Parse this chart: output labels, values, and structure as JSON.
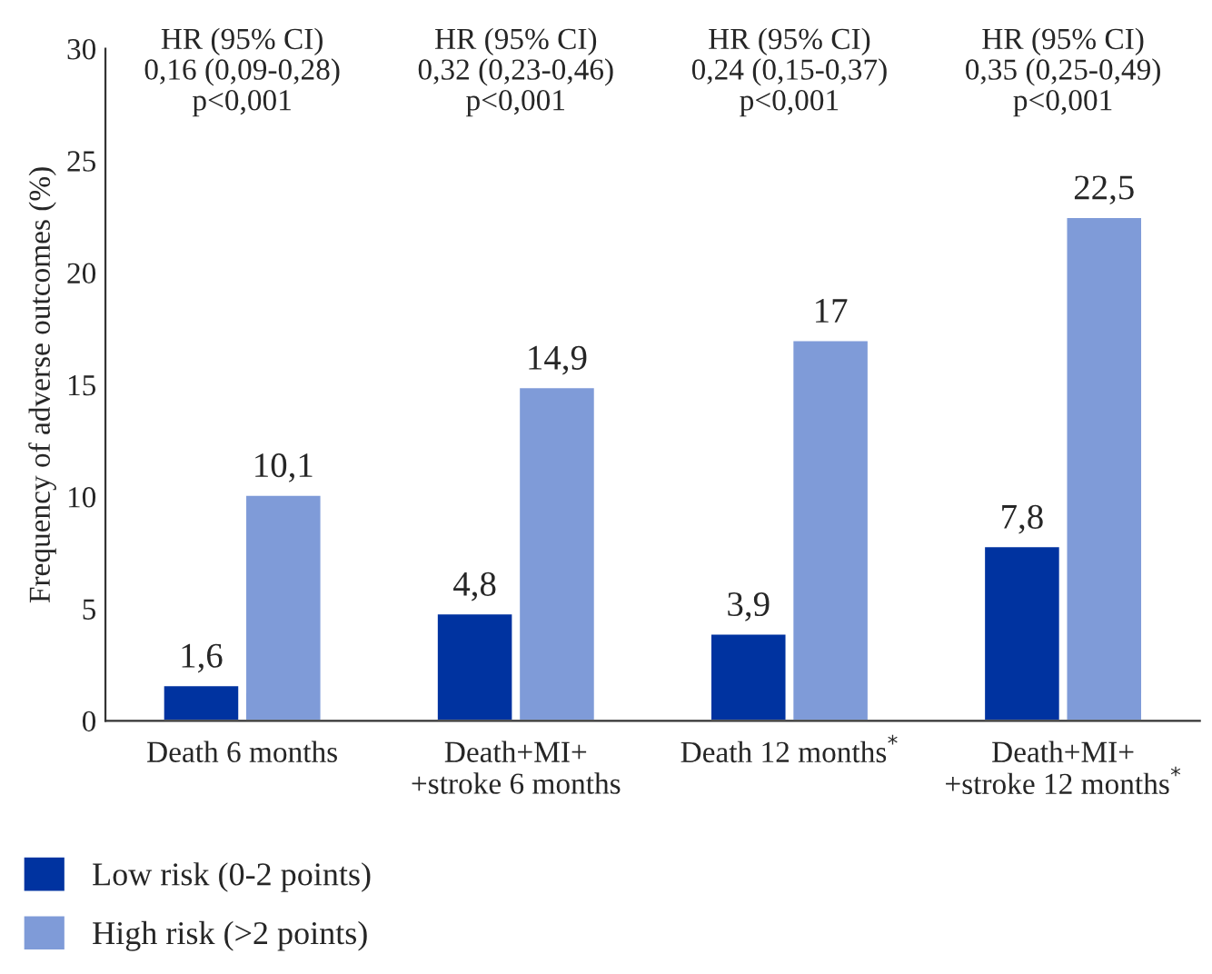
{
  "chart_data": {
    "type": "bar",
    "ylabel": "Frequency of adverse outcomes (%)",
    "categories": [
      "Death 6 months",
      "Death+MI+\n+stroke 6 months",
      "Death 12 months$^{*}$",
      "Death+MI+\n+stroke 12 months$^{*}$"
    ],
    "series": [
      {
        "name": "Low risk (0-2 points)",
        "color": "#0033a0",
        "values": [
          1.6,
          4.8,
          3.9,
          7.8
        ],
        "value_labels": [
          "1,6",
          "4,8",
          "3,9",
          "7,8"
        ]
      },
      {
        "name": "High risk (>2 points)",
        "color": "#7f9bd8",
        "values": [
          10.1,
          14.9,
          17,
          22.5
        ],
        "value_labels": [
          "10,1",
          "14,9",
          "17",
          "22,5"
        ]
      }
    ],
    "ylim": [
      0,
      30
    ],
    "yticks": [
      0,
      5,
      10,
      15,
      20,
      25,
      30
    ],
    "grid": false,
    "legend": "bottom left",
    "annotations": [
      "HR (95% CI)\n0,16 (0,09-0,28)\np<0,001",
      "HR (95% CI)\n0,32 (0,23-0,46)\np<0,001",
      "HR (95% CI)\n0,24 (0,15-0,37)\np<0,001",
      "HR (95% CI)\n0,35 (0,25-0,49)\np<0,001"
    ]
  }
}
